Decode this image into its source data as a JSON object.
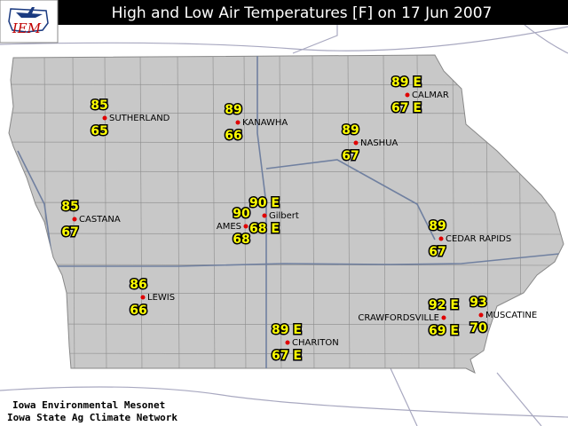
{
  "title": "High and Low Air Temperatures [F] on 17 Jun 2007",
  "logo": "IEM",
  "footer": [
    "Iowa Environmental Mesonet",
    "Iowa State Ag Climate Network"
  ],
  "stations": [
    {
      "name": "SUTHERLAND",
      "high": "85",
      "low": "65"
    },
    {
      "name": "KANAWHA",
      "high": "89",
      "low": "66"
    },
    {
      "name": "CALMAR",
      "high": "89 E",
      "low": "67 E"
    },
    {
      "name": "NASHUA",
      "high": "89",
      "low": "67"
    },
    {
      "name": "CASTANA",
      "high": "85",
      "low": "67"
    },
    {
      "name": "AMES",
      "high": "90",
      "low": "68"
    },
    {
      "name": "Gilbert",
      "high": "90 E",
      "low": "68 E"
    },
    {
      "name": "CEDAR RAPIDS",
      "high": "89",
      "low": "67"
    },
    {
      "name": "LEWIS",
      "high": "86",
      "low": "66"
    },
    {
      "name": "CHARITON",
      "high": "89 E",
      "low": "67 E"
    },
    {
      "name": "CRAWFORDSVILLE",
      "high": "92 E",
      "low": "69 E"
    },
    {
      "name": "MUSCATINE",
      "high": "93",
      "low": "70"
    }
  ]
}
